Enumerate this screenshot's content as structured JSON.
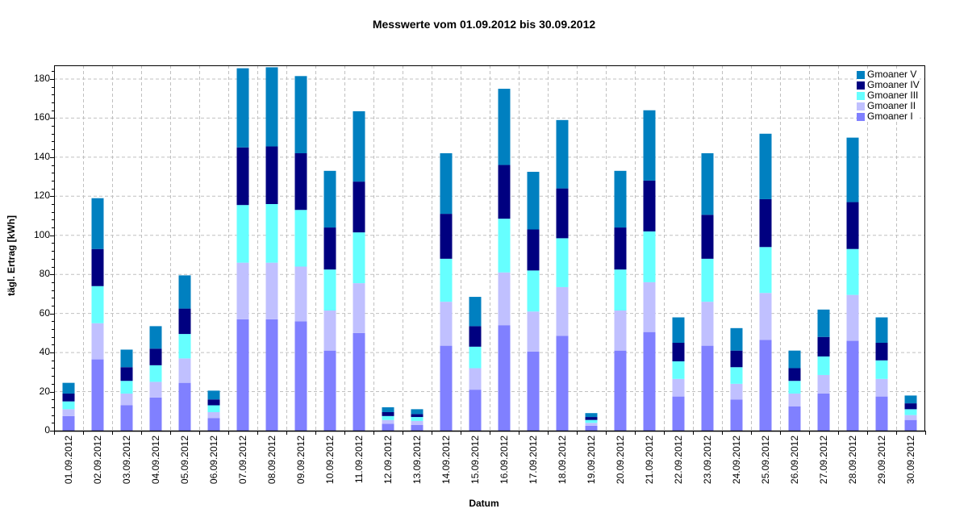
{
  "chart_data": {
    "type": "bar",
    "stacked": true,
    "title": "Messwerte vom 01.09.2012 bis 30.09.2012",
    "xlabel": "Datum",
    "ylabel": "tägl. Ertrag [kWh]",
    "ylim": [
      0,
      187
    ],
    "yticks": [
      0,
      20,
      40,
      60,
      80,
      100,
      120,
      140,
      160,
      180
    ],
    "grid": true,
    "legend_position": "top-right",
    "categories": [
      "01.09.2012",
      "02.09.2012",
      "03.09.2012",
      "04.09.2012",
      "05.09.2012",
      "06.09.2012",
      "07.09.2012",
      "08.09.2012",
      "09.09.2012",
      "10.09.2012",
      "11.09.2012",
      "12.09.2012",
      "13.09.2012",
      "14.09.2012",
      "15.09.2012",
      "16.09.2012",
      "17.09.2012",
      "18.09.2012",
      "19.09.2012",
      "20.09.2012",
      "21.09.2012",
      "22.09.2012",
      "23.09.2012",
      "24.09.2012",
      "25.09.2012",
      "26.09.2012",
      "27.09.2012",
      "28.09.2012",
      "29.09.2012",
      "30.09.2012"
    ],
    "series": [
      {
        "name": "Gmoaner I",
        "color": "#8080ff",
        "values": [
          7.5,
          36.5,
          13,
          17,
          24.5,
          6.5,
          57,
          57,
          56,
          41,
          50,
          3.5,
          3,
          43.5,
          21,
          54,
          40.5,
          48.5,
          2.5,
          41,
          50.5,
          17.5,
          43.5,
          16,
          46.5,
          12.5,
          19,
          46,
          17.5,
          5.5
        ]
      },
      {
        "name": "Gmoaner II",
        "color": "#c0c0ff",
        "values": [
          3.5,
          18.5,
          6,
          8,
          12.5,
          3,
          29,
          29,
          28,
          20.5,
          25.5,
          2,
          2,
          22.5,
          11,
          27,
          20.5,
          25,
          1.5,
          20.5,
          25.5,
          9,
          22.5,
          8,
          24,
          6.5,
          9.5,
          23.5,
          9,
          2.5
        ]
      },
      {
        "name": "Gmoaner III",
        "color": "#66ffff",
        "values": [
          4,
          19,
          6.5,
          8.5,
          12.5,
          3.5,
          29.5,
          30,
          29,
          21,
          26,
          2,
          2,
          22,
          11,
          27.5,
          21,
          25,
          1.5,
          21,
          26,
          9,
          22,
          8.5,
          23.5,
          6.5,
          9.5,
          23.5,
          9.5,
          3
        ]
      },
      {
        "name": "Gmoaner IV",
        "color": "#000080",
        "values": [
          4,
          19,
          7,
          8.5,
          13,
          3,
          29.5,
          29.5,
          29,
          21.5,
          26,
          2,
          1.5,
          23,
          10.5,
          27.5,
          21,
          25.5,
          1.5,
          21.5,
          26,
          9.5,
          22.5,
          8.5,
          24.5,
          6.5,
          10,
          24,
          9,
          3
        ]
      },
      {
        "name": "Gmoaner V",
        "color": "#0080c0",
        "values": [
          5.5,
          26,
          9,
          11.5,
          17,
          4.5,
          40.5,
          40.5,
          39.5,
          29,
          36,
          2.5,
          2.5,
          31,
          15,
          39,
          29.5,
          35,
          2,
          29,
          36,
          13,
          31.5,
          11.5,
          33.5,
          9,
          14,
          33,
          13,
          4
        ]
      }
    ]
  },
  "legend": {
    "items": [
      {
        "label": "Gmoaner V",
        "color": "#0080c0"
      },
      {
        "label": "Gmoaner IV",
        "color": "#000080"
      },
      {
        "label": "Gmoaner III",
        "color": "#66ffff"
      },
      {
        "label": "Gmoaner II",
        "color": "#c0c0ff"
      },
      {
        "label": "Gmoaner I",
        "color": "#8080ff"
      }
    ]
  }
}
